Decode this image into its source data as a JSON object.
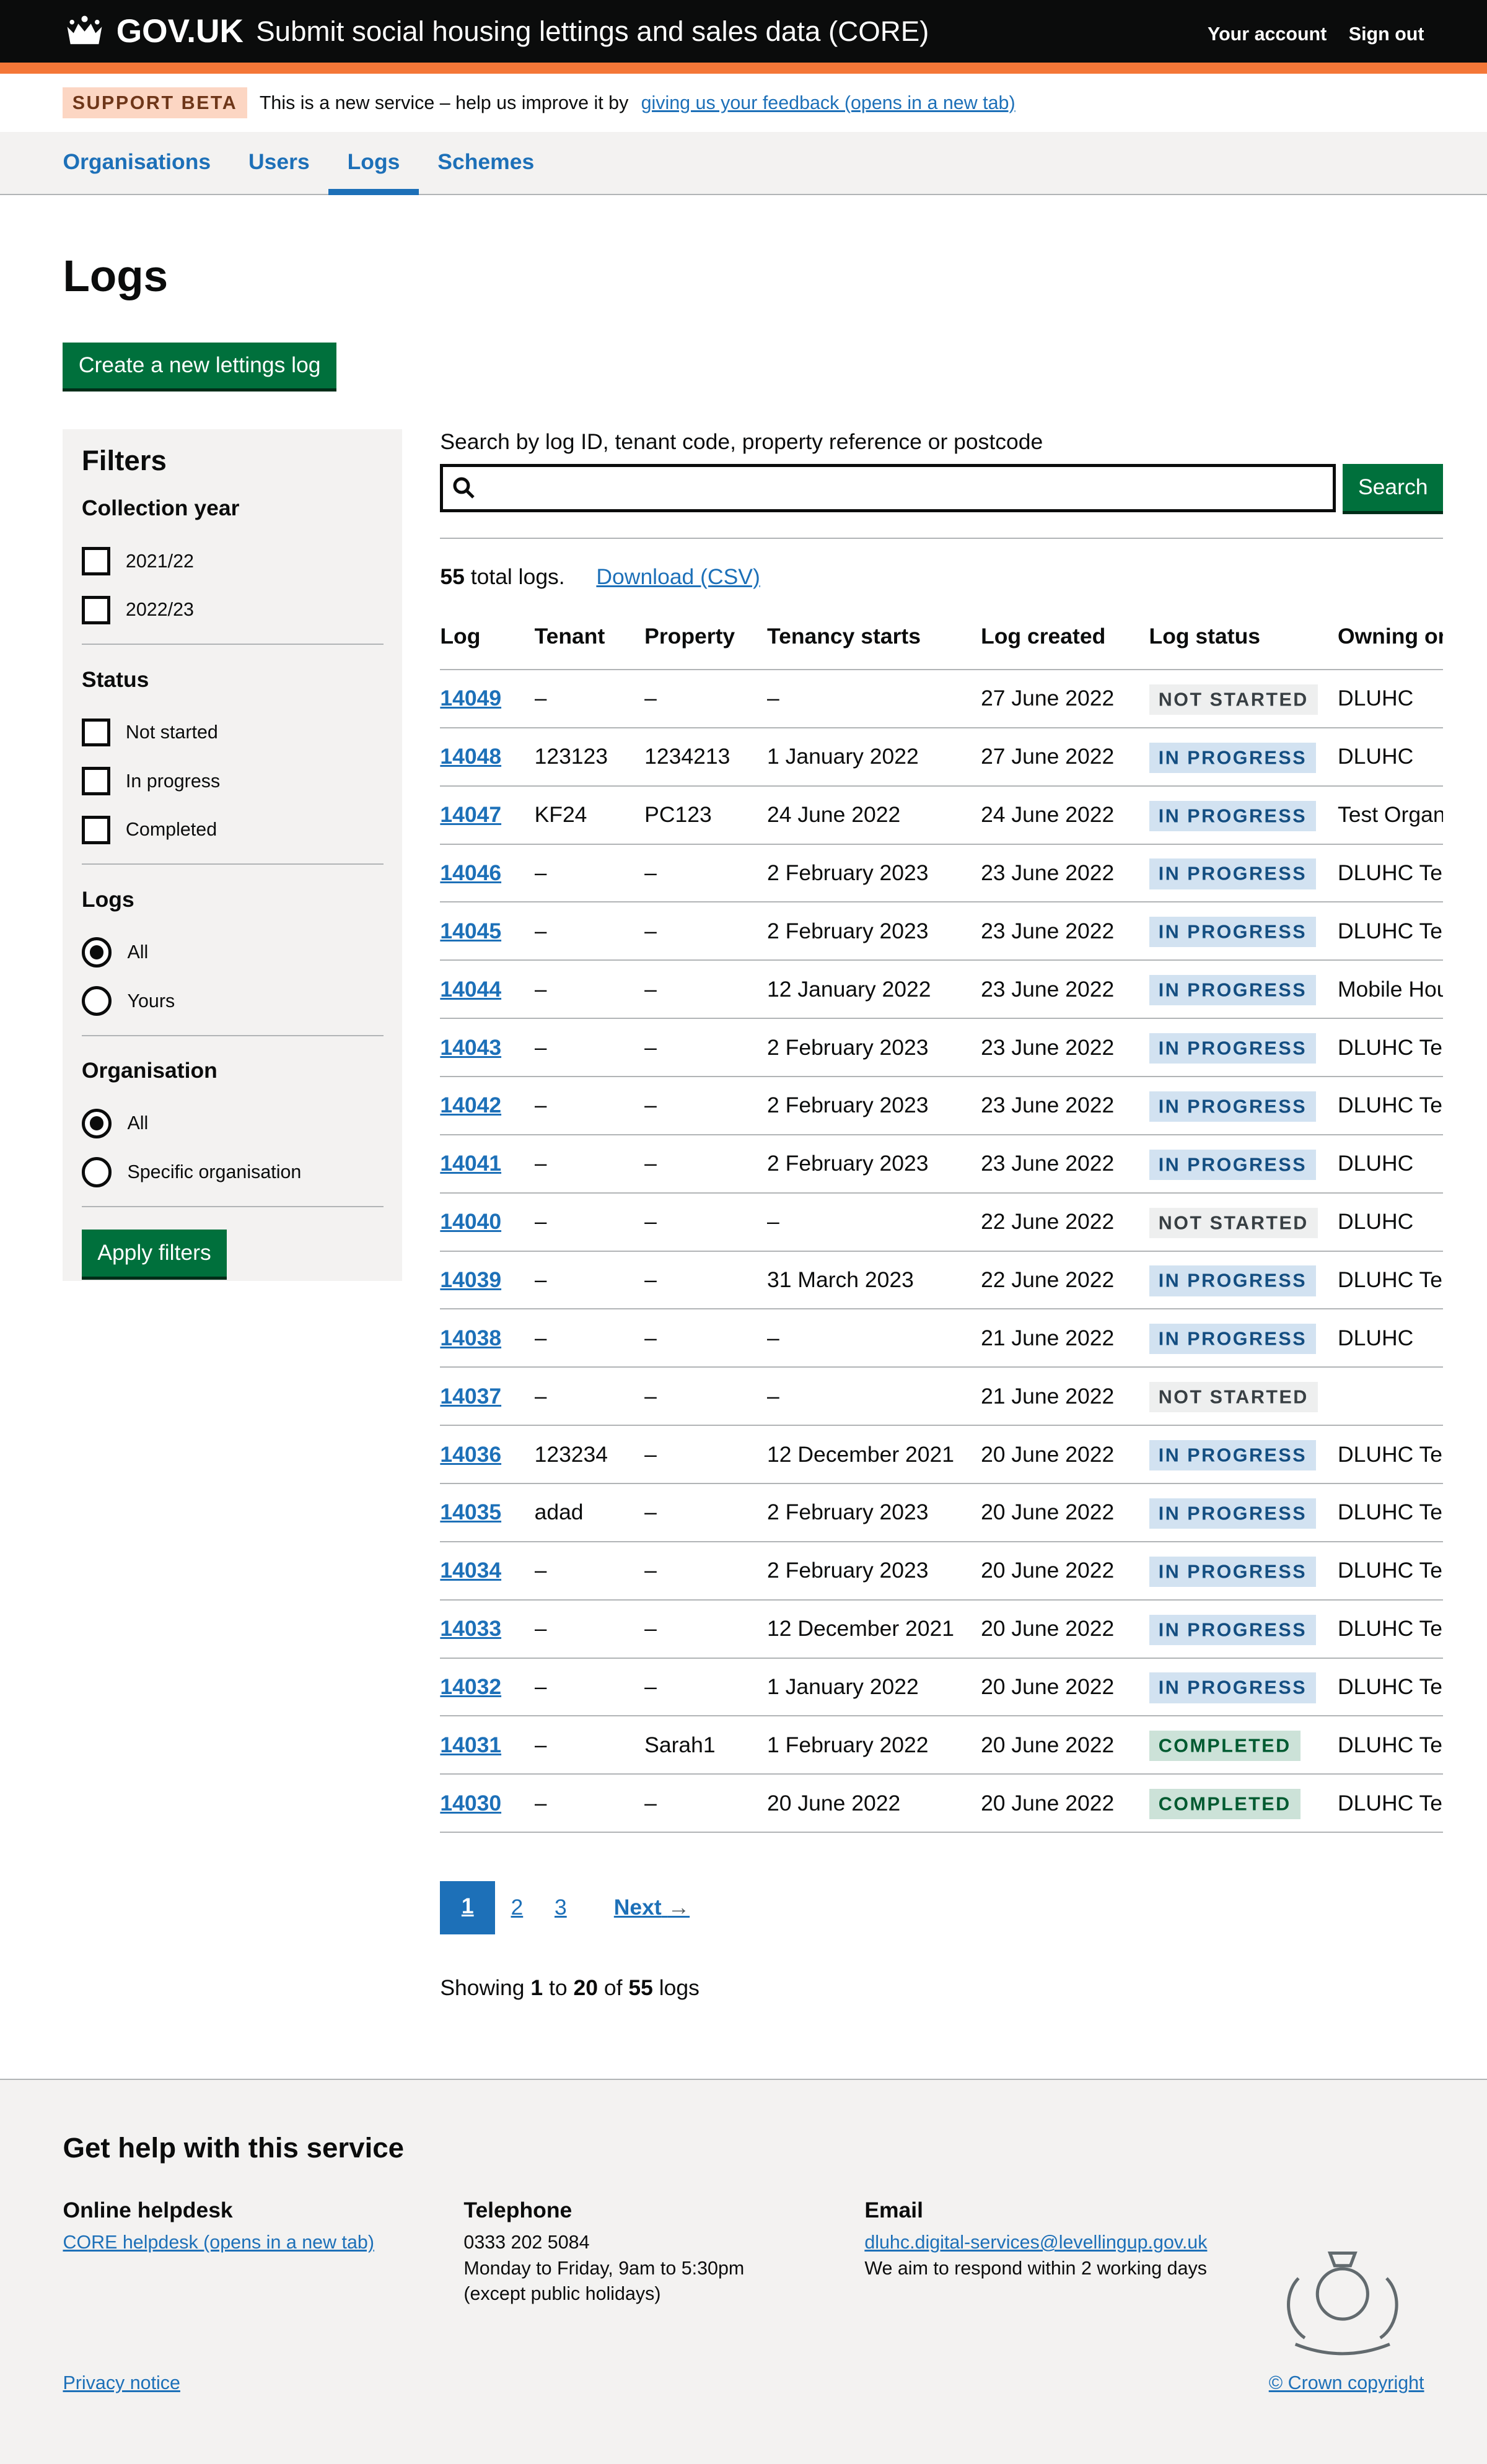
{
  "header": {
    "logo": "GOV.UK",
    "service": "Submit social housing lettings and sales data (CORE)",
    "account": "Your account",
    "sign_out": "Sign out"
  },
  "beta": {
    "tag": "SUPPORT BETA",
    "text": "This is a new service – help us improve it by",
    "link": "giving us your feedback (opens in a new tab)"
  },
  "nav": [
    {
      "label": "Organisations"
    },
    {
      "label": "Users"
    },
    {
      "label": "Logs",
      "active": true
    },
    {
      "label": "Schemes"
    }
  ],
  "page": {
    "title": "Logs",
    "create_button": "Create a new lettings log"
  },
  "filters": {
    "title": "Filters",
    "collection_year": {
      "label": "Collection year",
      "options": [
        "2021/22",
        "2022/23"
      ]
    },
    "status": {
      "label": "Status",
      "options": [
        "Not started",
        "In progress",
        "Completed"
      ]
    },
    "logs": {
      "label": "Logs",
      "options": [
        "All",
        "Yours"
      ],
      "selected": "All"
    },
    "organisation": {
      "label": "Organisation",
      "options": [
        "All",
        "Specific organisation"
      ],
      "selected": "All"
    },
    "apply": "Apply filters"
  },
  "search": {
    "label": "Search by log ID, tenant code, property reference or postcode",
    "value": "",
    "button": "Search"
  },
  "summary": {
    "count": "55",
    "text": " total logs.",
    "download": "Download (CSV)"
  },
  "table": {
    "headers": [
      "Log",
      "Tenant",
      "Property",
      "Tenancy starts",
      "Log created",
      "Log status",
      "Owning or"
    ],
    "rows": [
      [
        "14049",
        "–",
        "–",
        "–",
        "27 June 2022",
        "NOT STARTED",
        "DLUHC"
      ],
      [
        "14048",
        "123123",
        "1234213",
        "1 January 2022",
        "27 June 2022",
        "IN PROGRESS",
        "DLUHC"
      ],
      [
        "14047",
        "KF24",
        "PC123",
        "24 June 2022",
        "24 June 2022",
        "IN PROGRESS",
        "Test Organ"
      ],
      [
        "14046",
        "–",
        "–",
        "2 February 2023",
        "23 June 2022",
        "IN PROGRESS",
        "DLUHC Tes"
      ],
      [
        "14045",
        "–",
        "–",
        "2 February 2023",
        "23 June 2022",
        "IN PROGRESS",
        "DLUHC Tes"
      ],
      [
        "14044",
        "–",
        "–",
        "12 January 2022",
        "23 June 2022",
        "IN PROGRESS",
        "Mobile Hou"
      ],
      [
        "14043",
        "–",
        "–",
        "2 February 2023",
        "23 June 2022",
        "IN PROGRESS",
        "DLUHC Tes"
      ],
      [
        "14042",
        "–",
        "–",
        "2 February 2023",
        "23 June 2022",
        "IN PROGRESS",
        "DLUHC Tes"
      ],
      [
        "14041",
        "–",
        "–",
        "2 February 2023",
        "23 June 2022",
        "IN PROGRESS",
        "DLUHC"
      ],
      [
        "14040",
        "–",
        "–",
        "–",
        "22 June 2022",
        "NOT STARTED",
        "DLUHC"
      ],
      [
        "14039",
        "–",
        "–",
        "31 March 2023",
        "22 June 2022",
        "IN PROGRESS",
        "DLUHC Tes"
      ],
      [
        "14038",
        "–",
        "–",
        "–",
        "21 June 2022",
        "IN PROGRESS",
        "DLUHC"
      ],
      [
        "14037",
        "–",
        "–",
        "–",
        "21 June 2022",
        "NOT STARTED",
        ""
      ],
      [
        "14036",
        "123234",
        "–",
        "12 December 2021",
        "20 June 2022",
        "IN PROGRESS",
        "DLUHC Tes"
      ],
      [
        "14035",
        "adad",
        "–",
        "2 February 2023",
        "20 June 2022",
        "IN PROGRESS",
        "DLUHC Tes"
      ],
      [
        "14034",
        "–",
        "–",
        "2 February 2023",
        "20 June 2022",
        "IN PROGRESS",
        "DLUHC Tes"
      ],
      [
        "14033",
        "–",
        "–",
        "12 December 2021",
        "20 June 2022",
        "IN PROGRESS",
        "DLUHC Tes"
      ],
      [
        "14032",
        "–",
        "–",
        "1 January 2022",
        "20 June 2022",
        "IN PROGRESS",
        "DLUHC Tes"
      ],
      [
        "14031",
        "–",
        "Sarah1",
        "1 February 2022",
        "20 June 2022",
        "COMPLETED",
        "DLUHC Tes"
      ],
      [
        "14030",
        "–",
        "–",
        "20 June 2022",
        "20 June 2022",
        "COMPLETED",
        "DLUHC Tes"
      ]
    ]
  },
  "pagination": {
    "pages": [
      "1",
      "2",
      "3"
    ],
    "current": "1",
    "next": "Next"
  },
  "showing": {
    "prefix": "Showing ",
    "from": "1",
    "to_word": " to ",
    "to": "20",
    "of_word": " of ",
    "total": "55",
    "suffix": " logs"
  },
  "footer": {
    "title": "Get help with this service",
    "helpdesk": {
      "title": "Online helpdesk",
      "link": "CORE helpdesk (opens in a new tab)"
    },
    "telephone": {
      "title": "Telephone",
      "number": "0333 202 5084",
      "hours": "Monday to Friday, 9am to 5:30pm",
      "note": "(except public holidays)"
    },
    "email": {
      "title": "Email",
      "address": "dluhc.digital-services@levellingup.gov.uk",
      "note": "We aim to respond within 2 working days"
    },
    "privacy": "Privacy notice",
    "copyright": "© Crown copyright"
  },
  "colors": {
    "header": "#0b0c0c",
    "accent_bar": "#f47738",
    "link": "#1d70b8",
    "button": "#00703c",
    "panel": "#f3f2f1"
  }
}
